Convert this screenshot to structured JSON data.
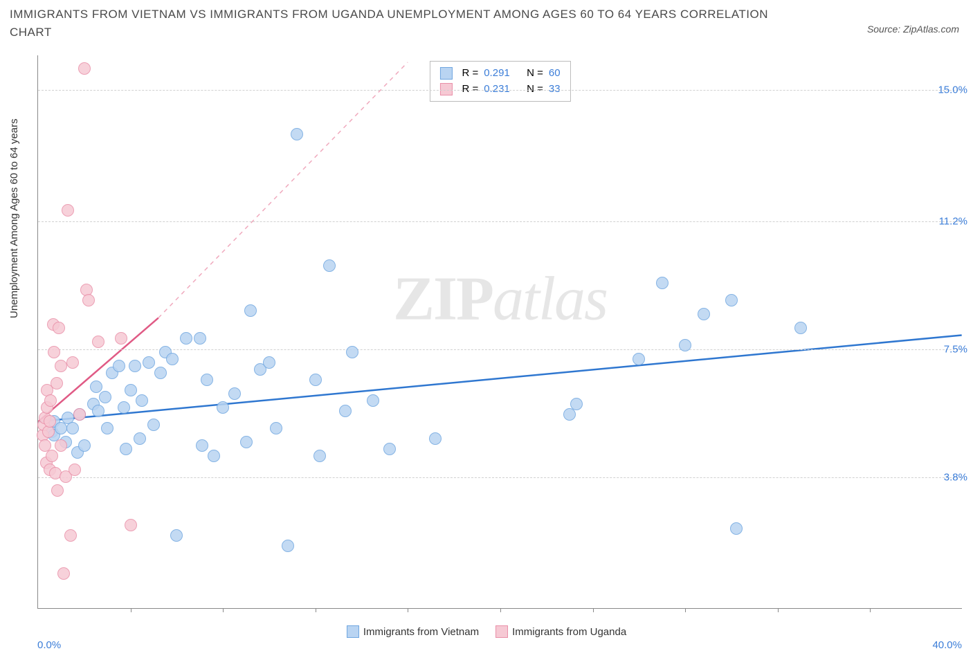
{
  "title": "IMMIGRANTS FROM VIETNAM VS IMMIGRANTS FROM UGANDA UNEMPLOYMENT AMONG AGES 60 TO 64 YEARS CORRELATION CHART",
  "source_label": "Source: ZipAtlas.com",
  "y_axis_label": "Unemployment Among Ages 60 to 64 years",
  "watermark": {
    "left": "ZIP",
    "right": "atlas"
  },
  "chart": {
    "type": "scatter",
    "xlim": [
      0,
      40
    ],
    "ylim": [
      0,
      16
    ],
    "x_ticks_minor_step": 4,
    "y_ticks": [
      3.8,
      7.5,
      11.2,
      15.0
    ],
    "x_axis_min_label": "0.0%",
    "x_axis_max_label": "40.0%",
    "background_color": "#ffffff",
    "grid_color": "#d0d0d0",
    "point_radius": 9,
    "series": [
      {
        "name": "Immigrants from Vietnam",
        "color_fill": "#b9d4f2",
        "color_stroke": "#6fa6e0",
        "r_value": "0.291",
        "n_value": "60",
        "trend": {
          "x1": 0,
          "y1": 5.4,
          "x2": 40,
          "y2": 7.9,
          "color": "#2f77d0",
          "width": 2.5,
          "dash": "none"
        },
        "points": [
          [
            0.6,
            5.1
          ],
          [
            0.7,
            5.0
          ],
          [
            0.7,
            5.4
          ],
          [
            1.0,
            5.2
          ],
          [
            1.2,
            4.8
          ],
          [
            1.3,
            5.5
          ],
          [
            1.5,
            5.2
          ],
          [
            1.7,
            4.5
          ],
          [
            1.8,
            5.6
          ],
          [
            2.0,
            4.7
          ],
          [
            2.4,
            5.9
          ],
          [
            2.5,
            6.4
          ],
          [
            2.6,
            5.7
          ],
          [
            2.9,
            6.1
          ],
          [
            3.0,
            5.2
          ],
          [
            3.2,
            6.8
          ],
          [
            3.5,
            7.0
          ],
          [
            3.7,
            5.8
          ],
          [
            3.8,
            4.6
          ],
          [
            4.0,
            6.3
          ],
          [
            4.2,
            7.0
          ],
          [
            4.4,
            4.9
          ],
          [
            4.5,
            6.0
          ],
          [
            4.8,
            7.1
          ],
          [
            5.0,
            5.3
          ],
          [
            5.3,
            6.8
          ],
          [
            5.5,
            7.4
          ],
          [
            5.8,
            7.2
          ],
          [
            6.0,
            2.1
          ],
          [
            6.4,
            7.8
          ],
          [
            7.0,
            7.8
          ],
          [
            7.1,
            4.7
          ],
          [
            7.3,
            6.6
          ],
          [
            7.6,
            4.4
          ],
          [
            8.0,
            5.8
          ],
          [
            8.5,
            6.2
          ],
          [
            9.0,
            4.8
          ],
          [
            9.2,
            8.6
          ],
          [
            9.6,
            6.9
          ],
          [
            10.0,
            7.1
          ],
          [
            10.3,
            5.2
          ],
          [
            10.8,
            1.8
          ],
          [
            11.2,
            13.7
          ],
          [
            12.0,
            6.6
          ],
          [
            12.2,
            4.4
          ],
          [
            12.6,
            9.9
          ],
          [
            13.3,
            5.7
          ],
          [
            13.6,
            7.4
          ],
          [
            14.5,
            6.0
          ],
          [
            15.2,
            4.6
          ],
          [
            17.2,
            4.9
          ],
          [
            23.0,
            5.6
          ],
          [
            23.3,
            5.9
          ],
          [
            26.0,
            7.2
          ],
          [
            27.0,
            9.4
          ],
          [
            28.0,
            7.6
          ],
          [
            28.8,
            8.5
          ],
          [
            30.2,
            2.3
          ],
          [
            33.0,
            8.1
          ],
          [
            30.0,
            8.9
          ]
        ]
      },
      {
        "name": "Immigrants from Uganda",
        "color_fill": "#f6c9d4",
        "color_stroke": "#e98fa8",
        "r_value": "0.231",
        "n_value": "33",
        "trend_solid": {
          "x1": 0,
          "y1": 5.4,
          "x2": 5.2,
          "y2": 8.4,
          "color": "#e05a85",
          "width": 2.5
        },
        "trend_dash": {
          "x1": 5.2,
          "y1": 8.4,
          "x2": 16.0,
          "y2": 15.8,
          "color": "#f0a9bd",
          "width": 1.5
        },
        "points": [
          [
            0.2,
            5.0
          ],
          [
            0.25,
            5.3
          ],
          [
            0.3,
            5.5
          ],
          [
            0.3,
            4.7
          ],
          [
            0.35,
            4.2
          ],
          [
            0.4,
            5.8
          ],
          [
            0.4,
            6.3
          ],
          [
            0.45,
            5.1
          ],
          [
            0.5,
            5.4
          ],
          [
            0.5,
            4.0
          ],
          [
            0.55,
            6.0
          ],
          [
            0.6,
            4.4
          ],
          [
            0.65,
            8.2
          ],
          [
            0.7,
            7.4
          ],
          [
            0.75,
            3.9
          ],
          [
            0.8,
            6.5
          ],
          [
            0.85,
            3.4
          ],
          [
            0.9,
            8.1
          ],
          [
            1.0,
            4.7
          ],
          [
            1.0,
            7.0
          ],
          [
            1.1,
            1.0
          ],
          [
            1.2,
            3.8
          ],
          [
            1.3,
            11.5
          ],
          [
            1.4,
            2.1
          ],
          [
            1.5,
            7.1
          ],
          [
            1.6,
            4.0
          ],
          [
            1.8,
            5.6
          ],
          [
            2.0,
            15.6
          ],
          [
            2.1,
            9.2
          ],
          [
            2.2,
            8.9
          ],
          [
            2.6,
            7.7
          ],
          [
            3.6,
            7.8
          ],
          [
            4.0,
            2.4
          ]
        ]
      }
    ]
  },
  "y_tick_suffix": "%",
  "bottom_legend": [
    {
      "label": "Immigrants from Vietnam",
      "fill": "#b9d4f2",
      "stroke": "#6fa6e0"
    },
    {
      "label": "Immigrants from Uganda",
      "fill": "#f6c9d4",
      "stroke": "#e98fa8"
    }
  ]
}
